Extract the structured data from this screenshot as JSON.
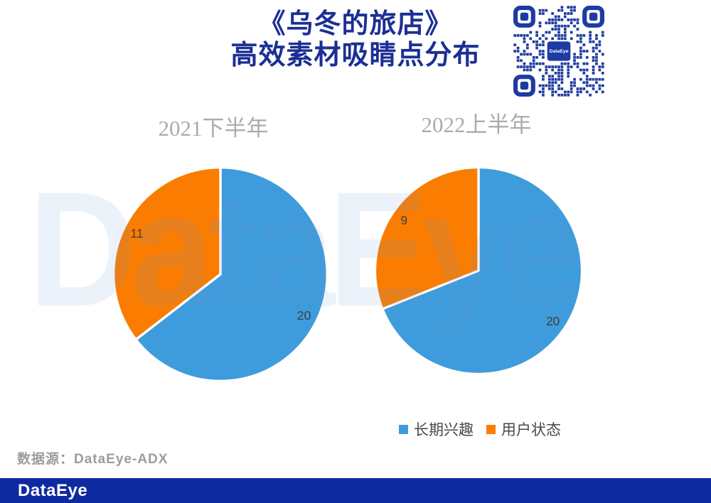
{
  "header": {
    "title_line1": "《乌冬的旅店》",
    "title_line2": "高效素材吸睛点分布"
  },
  "qr": {
    "label": "DataEye"
  },
  "watermark_text": "DataEye",
  "chart_data": [
    {
      "type": "pie",
      "title": "2021下半年",
      "labels": [
        "长期兴趣",
        "用户状态"
      ],
      "values": [
        20,
        11
      ],
      "colors": [
        "#3F9CDC",
        "#FA7D02"
      ],
      "start_angle_deg": 0,
      "direction": "clockwise",
      "data_labels_shown": true,
      "legend_position": "none"
    },
    {
      "type": "pie",
      "title": "2022上半年",
      "labels": [
        "长期兴趣",
        "用户状态"
      ],
      "values": [
        20,
        9
      ],
      "colors": [
        "#3F9CDC",
        "#FA7D02"
      ],
      "start_angle_deg": 0,
      "direction": "clockwise",
      "data_labels_shown": true,
      "legend_position": "bottom"
    }
  ],
  "legend": {
    "items": [
      {
        "label": "长期兴趣",
        "color": "#3F9CDC"
      },
      {
        "label": "用户状态",
        "color": "#FA7D02"
      }
    ]
  },
  "footer": {
    "source_note": "数据源：DataEye-ADX",
    "logo_text": "DataEye"
  },
  "colors": {
    "title": "#1B2F94",
    "footer_bg": "#0D2AA1",
    "chart_title_gray": "#ABABAB",
    "slice_label": "#3F3F3F",
    "source_gray": "#9C9C9C",
    "qr_blue": "#1E3BA3",
    "pie_blue": "#3F9CDC",
    "pie_orange": "#FA7D02",
    "watermark": "rgba(110,155,205,0.13)"
  }
}
